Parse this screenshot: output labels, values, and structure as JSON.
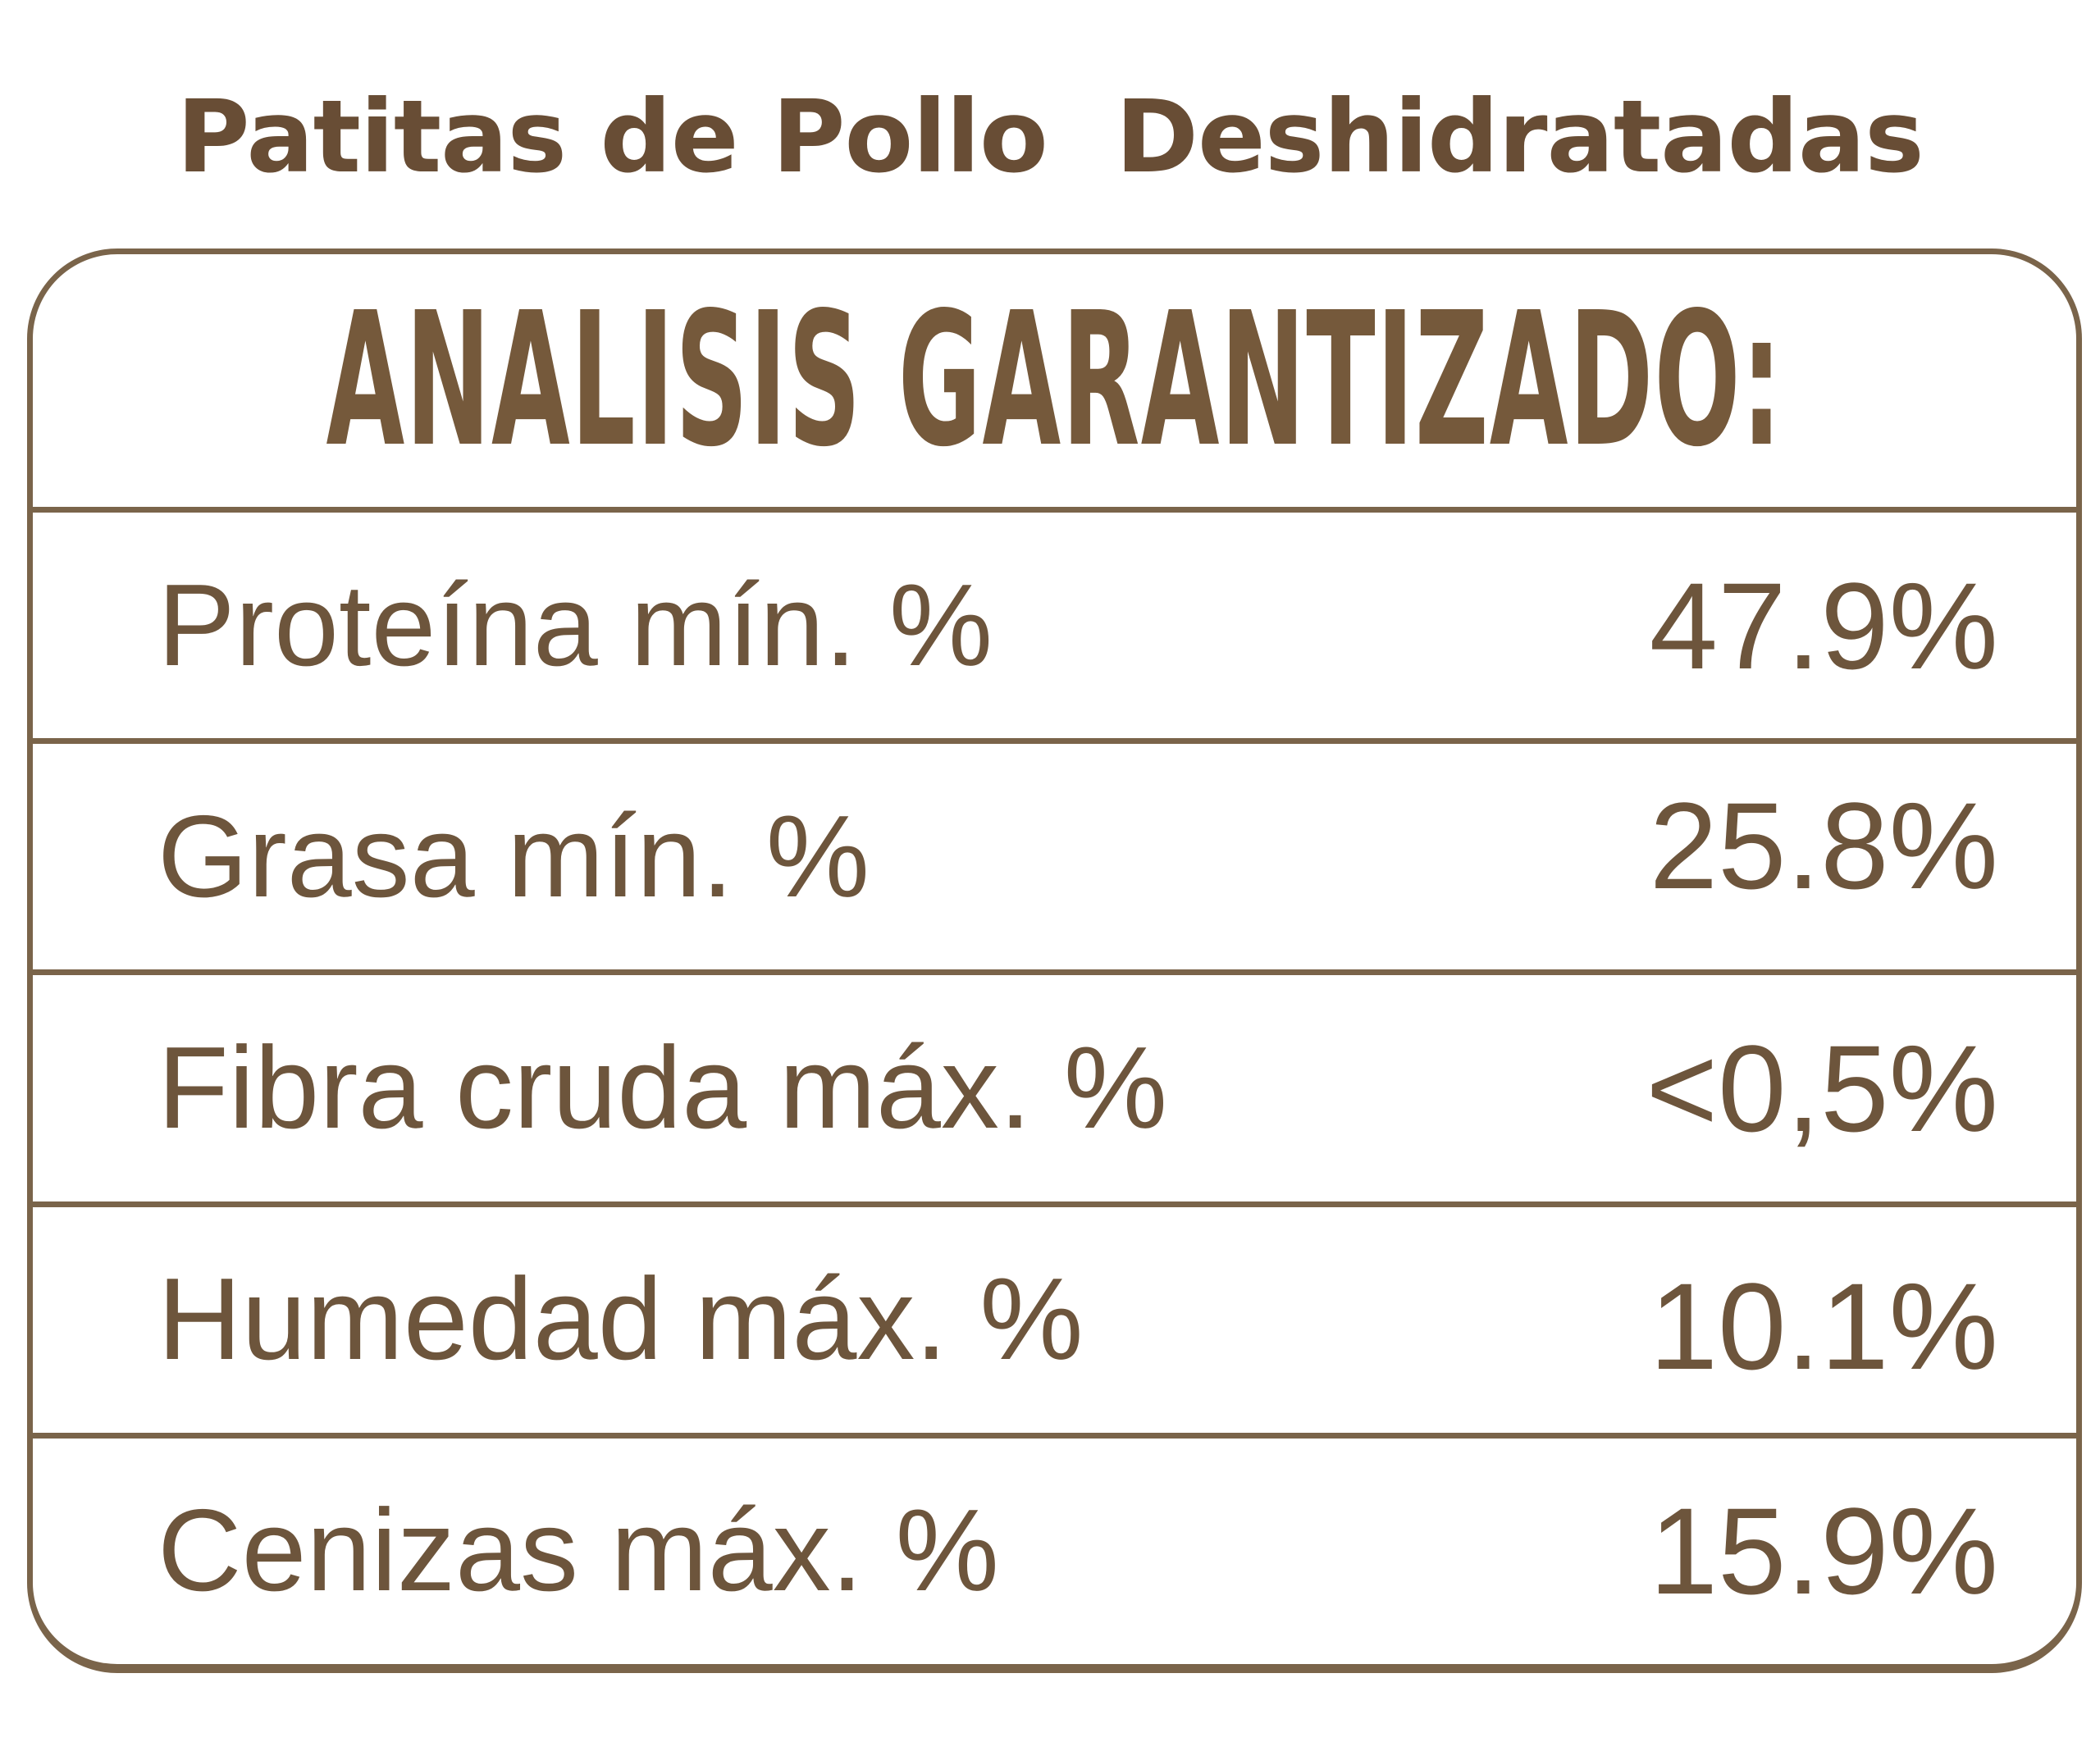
{
  "page": {
    "title": "Patitas de Pollo  Deshidratadas"
  },
  "panel": {
    "header": "ANALISIS GARANTIZADO:",
    "rows": [
      {
        "label": "Proteína mín. %",
        "value": "47.9%"
      },
      {
        "label": "Grasa mín. %",
        "value": "25.8%"
      },
      {
        "label": "Fibra cruda máx. %",
        "value": "<0,5%"
      },
      {
        "label": "Humedad máx. %",
        "value": "10.1%"
      },
      {
        "label": "Cenizas máx. %",
        "value": "15.9%"
      }
    ],
    "colors": {
      "text_brown": "#6d553c",
      "title_brown": "#684d35",
      "header_brown": "#75593b",
      "line_brown": "#7a644a",
      "background": "#ffffff"
    }
  }
}
